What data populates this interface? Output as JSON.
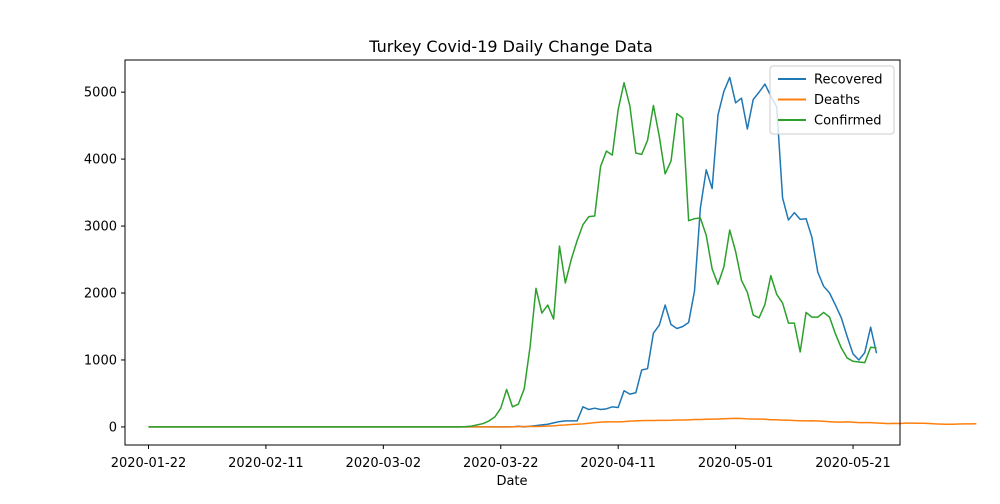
{
  "chart_data": {
    "type": "line",
    "title": "Turkey Covid-19 Daily Change Data",
    "xlabel": "Date",
    "ylabel": "",
    "x_start": "2020-01-22",
    "x_end": "2020-05-25",
    "xlim": [
      "2020-01-18",
      "2020-05-29"
    ],
    "ylim": [
      -270,
      5480
    ],
    "x_ticks": [
      "2020-01-22",
      "2020-02-11",
      "2020-03-02",
      "2020-03-22",
      "2020-04-11",
      "2020-05-01",
      "2020-05-21"
    ],
    "y_ticks": [
      0,
      1000,
      2000,
      3000,
      4000,
      5000
    ],
    "grid": false,
    "legend_position": "top-right",
    "series": [
      {
        "name": "Recovered",
        "color": "#1f77b4",
        "values": [
          0,
          0,
          0,
          0,
          0,
          0,
          0,
          0,
          0,
          0,
          0,
          0,
          0,
          0,
          0,
          0,
          0,
          0,
          0,
          0,
          0,
          0,
          0,
          0,
          0,
          0,
          0,
          0,
          0,
          0,
          0,
          0,
          0,
          0,
          0,
          0,
          0,
          0,
          0,
          0,
          0,
          0,
          0,
          0,
          0,
          0,
          0,
          0,
          0,
          0,
          0,
          0,
          0,
          0,
          0,
          0,
          0,
          0,
          0,
          0,
          0,
          0,
          0,
          10,
          0,
          10,
          20,
          30,
          40,
          60,
          80,
          90,
          90,
          90,
          300,
          260,
          280,
          260,
          270,
          300,
          290,
          540,
          490,
          510,
          850,
          870,
          1400,
          1520,
          1820,
          1530,
          1470,
          1500,
          1560,
          2030,
          3270,
          3840,
          3560,
          4660,
          5010,
          5220,
          4840,
          4910,
          4450,
          4890,
          5000,
          5120,
          4940,
          4780,
          3420,
          3090,
          3200,
          3100,
          3110,
          2830,
          2310,
          2100,
          2000,
          1820,
          1630,
          1350,
          1090,
          1000,
          1110,
          1490,
          1100
        ]
      },
      {
        "name": "Deaths",
        "color": "#ff7f0e",
        "values": [
          0,
          0,
          0,
          0,
          0,
          0,
          0,
          0,
          0,
          0,
          0,
          0,
          0,
          0,
          0,
          0,
          0,
          0,
          0,
          0,
          0,
          0,
          0,
          0,
          0,
          0,
          0,
          0,
          0,
          0,
          0,
          0,
          0,
          0,
          0,
          0,
          0,
          0,
          0,
          0,
          0,
          0,
          0,
          0,
          0,
          0,
          0,
          0,
          0,
          0,
          0,
          0,
          0,
          0,
          0,
          0,
          0,
          0,
          0,
          0,
          0,
          1,
          2,
          4,
          7,
          7,
          7,
          9,
          14,
          16,
          24,
          29,
          36,
          40,
          46,
          55,
          64,
          72,
          75,
          76,
          76,
          79,
          86,
          90,
          94,
          96,
          96,
          98,
          98,
          100,
          104,
          104,
          106,
          110,
          111,
          115,
          117,
          119,
          122,
          126,
          127,
          125,
          121,
          119,
          117,
          115,
          107,
          107,
          102,
          99,
          95,
          93,
          91,
          92,
          88,
          84,
          78,
          74,
          71,
          75,
          70,
          65,
          65,
          64,
          58,
          55,
          50,
          53,
          51,
          56,
          57,
          54,
          55,
          51,
          45,
          42,
          40,
          39,
          43,
          45,
          46,
          47
        ]
      },
      {
        "name": "Confirmed",
        "color": "#2ca02c",
        "values": [
          0,
          0,
          0,
          0,
          0,
          0,
          0,
          0,
          0,
          0,
          0,
          0,
          0,
          0,
          0,
          0,
          0,
          0,
          0,
          0,
          0,
          0,
          0,
          0,
          0,
          0,
          0,
          0,
          0,
          0,
          0,
          0,
          0,
          0,
          0,
          0,
          0,
          0,
          0,
          0,
          0,
          0,
          0,
          0,
          0,
          0,
          0,
          0,
          0,
          0,
          0,
          0,
          0,
          1,
          4,
          12,
          30,
          50,
          90,
          150,
          280,
          560,
          300,
          340,
          570,
          1200,
          2070,
          1700,
          1820,
          1610,
          2700,
          2150,
          2500,
          2780,
          3020,
          3140,
          3150,
          3890,
          4120,
          4060,
          4740,
          5140,
          4790,
          4090,
          4070,
          4280,
          4800,
          4340,
          3780,
          3970,
          4680,
          4610,
          3080,
          3110,
          3120,
          2860,
          2360,
          2130,
          2390,
          2940,
          2620,
          2190,
          2010,
          1670,
          1630,
          1830,
          2260,
          1980,
          1850,
          1550,
          1550,
          1120,
          1710,
          1640,
          1640,
          1710,
          1640,
          1390,
          1180,
          1030,
          980,
          970,
          960,
          1190,
          1180
        ]
      }
    ]
  }
}
